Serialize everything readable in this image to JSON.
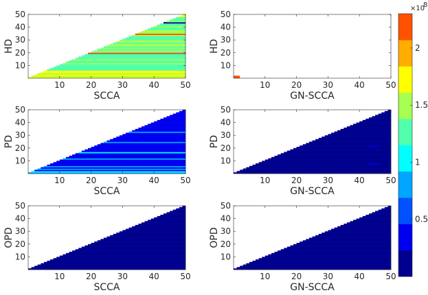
{
  "chart_data": {
    "type": "heatmap",
    "colorbar": {
      "exponent_label": "×10",
      "exponent_sup": "8",
      "ticks": [
        {
          "value": 0.5,
          "label": "0.5"
        },
        {
          "value": 1,
          "label": "1"
        },
        {
          "value": 1.5,
          "label": "1.5"
        },
        {
          "value": 2,
          "label": "2"
        }
      ],
      "range": [
        0,
        2.3
      ],
      "bins": 10,
      "colors": [
        "#00008F",
        "#0000F0",
        "#0052FF",
        "#00A6FF",
        "#00FFFF",
        "#52FFAD",
        "#A6FF52",
        "#FFFF00",
        "#FFAD00",
        "#FF5200"
      ]
    },
    "axis_ticks": [
      "10",
      "20",
      "30",
      "40",
      "50"
    ],
    "axis_range": [
      0,
      50
    ],
    "panels": [
      {
        "id": "hd-scca",
        "ylabel": "HD",
        "xlabel": "SCCA",
        "pattern": "hd_scca"
      },
      {
        "id": "hd-gnscca",
        "ylabel": "HD",
        "xlabel": "GN-SCCA",
        "pattern": "hd_gn"
      },
      {
        "id": "pd-scca",
        "ylabel": "PD",
        "xlabel": "SCCA",
        "pattern": "pd_scca"
      },
      {
        "id": "pd-gnscca",
        "ylabel": "PD",
        "xlabel": "GN-SCCA",
        "pattern": "pd_gn"
      },
      {
        "id": "opd-scca",
        "ylabel": "OPD",
        "xlabel": "SCCA",
        "pattern": "low"
      },
      {
        "id": "opd-gnscca",
        "ylabel": "OPD",
        "xlabel": "GN-SCCA",
        "pattern": "low"
      }
    ]
  }
}
